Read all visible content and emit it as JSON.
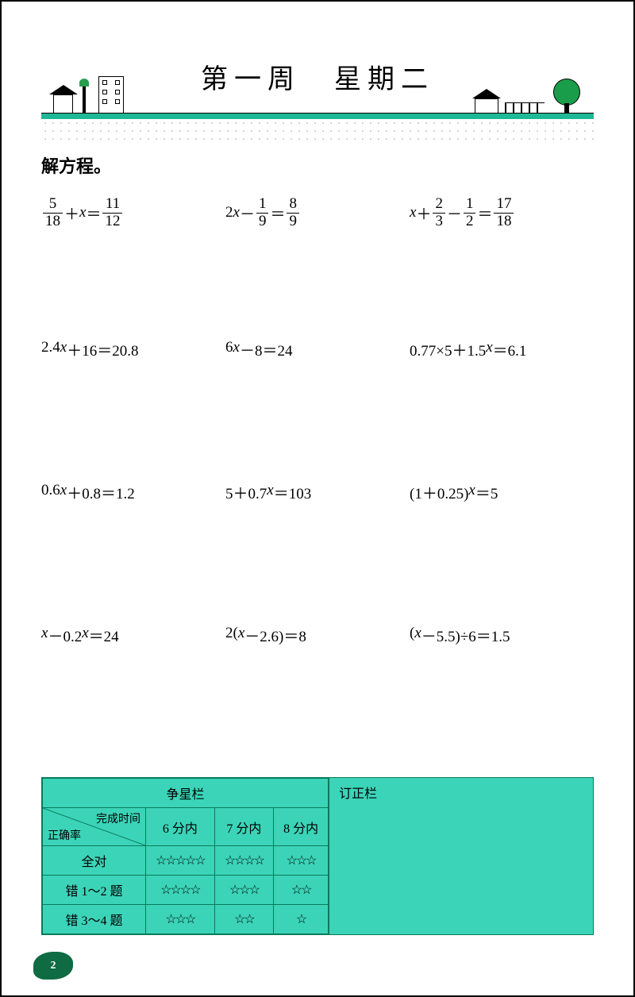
{
  "header": {
    "title": "第一周　星期二"
  },
  "section_title": "解方程。",
  "equations": {
    "rows": [
      [
        {
          "type": "frac",
          "parts": [
            {
              "frac": [
                "5",
                "18"
              ]
            },
            "＋",
            {
              "var": "x"
            },
            "＝",
            {
              "frac": [
                "11",
                "12"
              ]
            }
          ]
        },
        {
          "type": "frac",
          "parts": [
            "2",
            {
              "var": "x"
            },
            "－",
            {
              "frac": [
                "1",
                "9"
              ]
            },
            "＝",
            {
              "frac": [
                "8",
                "9"
              ]
            }
          ]
        },
        {
          "type": "frac",
          "parts": [
            {
              "var": "x"
            },
            "＋",
            {
              "frac": [
                "2",
                "3"
              ]
            },
            "－",
            {
              "frac": [
                "1",
                "2"
              ]
            },
            "＝",
            {
              "frac": [
                "17",
                "18"
              ]
            }
          ]
        }
      ],
      [
        {
          "text": "2.4x＋16＝20.8"
        },
        {
          "text": "6x－8＝24"
        },
        {
          "text": "0.77×5＋1.5x＝6.1"
        }
      ],
      [
        {
          "text": "0.6x＋0.8＝1.2"
        },
        {
          "text": "5＋0.7x＝103"
        },
        {
          "text": "(1＋0.25)x＝5"
        }
      ],
      [
        {
          "text": "x－0.2x＝24"
        },
        {
          "text": "2(x－2.6)＝8"
        },
        {
          "text": "(x－5.5)÷6＝1.5"
        }
      ]
    ]
  },
  "star_table": {
    "title": "争星栏",
    "correction_title": "订正栏",
    "diag_top": "完成时间",
    "diag_bottom": "正确率",
    "time_headers": [
      "6 分内",
      "7 分内",
      "8 分内"
    ],
    "rows": [
      {
        "label": "全对",
        "stars": [
          "☆☆☆☆☆",
          "☆☆☆☆",
          "☆☆☆"
        ]
      },
      {
        "label": "错 1～2 题",
        "stars": [
          "☆☆☆☆",
          "☆☆☆",
          "☆☆"
        ]
      },
      {
        "label": "错 3～4 题",
        "stars": [
          "☆☆☆",
          "☆☆",
          "☆"
        ]
      }
    ]
  },
  "page_number": "2",
  "colors": {
    "accent": "#1fb896",
    "table_bg": "#3bd4b8",
    "table_border": "#0a7a5a",
    "tree_green": "#1a9d4a"
  }
}
